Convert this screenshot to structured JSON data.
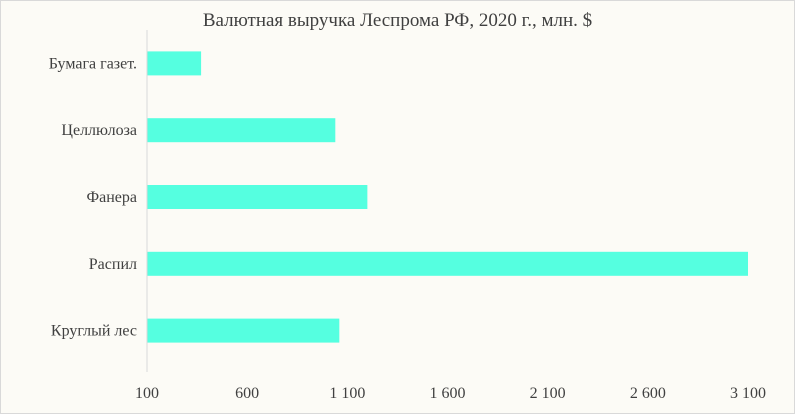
{
  "chart_data": {
    "type": "bar",
    "orientation": "horizontal",
    "title": "Валютная выручка Леспрома РФ, 2020 г., млн. $",
    "categories": [
      "Бумага газет.",
      "Целлюлоза",
      "Фанера",
      "Распил",
      "Круглый лес"
    ],
    "values": [
      370,
      1040,
      1200,
      3150,
      1060
    ],
    "xlim": [
      100,
      3100
    ],
    "x_ticks": [
      100,
      600,
      1100,
      1600,
      2100,
      2600,
      3100
    ],
    "x_tick_labels": [
      "100",
      "600",
      "1 100",
      "1 600",
      "2 100",
      "2 600",
      "3 100"
    ],
    "bar_color": "#55FFE0",
    "grid": false,
    "legend": "none"
  }
}
